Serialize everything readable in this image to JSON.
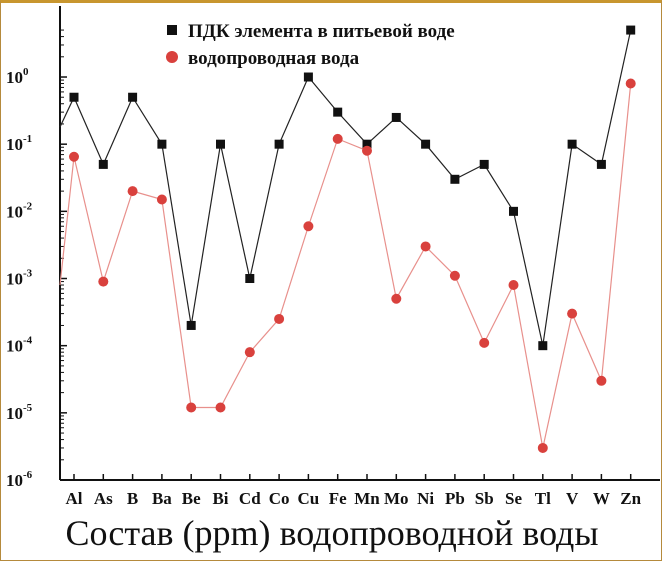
{
  "chart_data": {
    "type": "line",
    "yscale": "log",
    "ylim": [
      1e-06,
      10
    ],
    "ytick_labels": [
      "10",
      "10",
      "10",
      "10",
      "10",
      "10",
      "10"
    ],
    "ytick_exponents": [
      "-6",
      "-5",
      "-4",
      "-3",
      "-2",
      "-1",
      "0"
    ],
    "ytick_values": [
      1e-06,
      1e-05,
      0.0001,
      0.001,
      0.01,
      0.1,
      1
    ],
    "xlabel": "Состав (ppm) водопроводной воды",
    "ylabel": "",
    "grid": false,
    "legend_position": "top-right",
    "categories": [
      "Al",
      "As",
      "B",
      "Ba",
      "Be",
      "Bi",
      "Cd",
      "Co",
      "Cu",
      "Fe",
      "Mn",
      "Mo",
      "Ni",
      "Pb",
      "Sb",
      "Se",
      "Tl",
      "V",
      "W",
      "Zn"
    ],
    "series": [
      {
        "name": "ПДК элемента в питьевой воде",
        "marker": "square",
        "color": "#111111",
        "line_color": "#222222",
        "values": [
          0.5,
          0.05,
          0.5,
          0.1,
          0.0002,
          0.1,
          0.001,
          0.1,
          1,
          0.3,
          0.1,
          0.25,
          0.1,
          0.03,
          0.05,
          0.01,
          0.0001,
          0.1,
          0.05,
          5
        ],
        "left_edge_value": 0.18
      },
      {
        "name": "водопроводная вода",
        "marker": "circle",
        "color": "#d9413d",
        "line_color": "#e8908c",
        "values": [
          0.065,
          0.0009,
          0.02,
          0.015,
          1.2e-05,
          1.2e-05,
          8e-05,
          0.00025,
          0.006,
          0.12,
          0.08,
          0.0005,
          0.003,
          0.0011,
          0.00011,
          0.0008,
          3e-06,
          0.0003,
          3e-05,
          0.8
        ],
        "left_edge_value": 0.0008
      }
    ]
  }
}
